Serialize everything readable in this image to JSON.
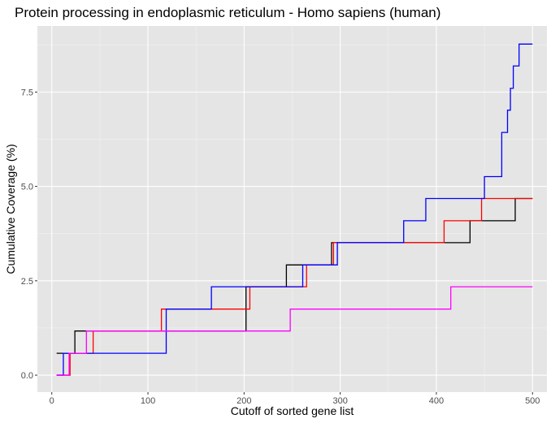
{
  "chart_data": {
    "type": "line",
    "title": "Protein processing in endoplasmic reticulum - Homo sapiens (human)",
    "xlabel": "Cutoff of sorted gene list",
    "ylabel": "Cumulative Coverage (%)",
    "xlim": [
      -15,
      515
    ],
    "ylim": [
      -0.45,
      9.25
    ],
    "x_ticks": [
      0,
      100,
      200,
      300,
      400,
      500
    ],
    "x_tick_labels": [
      "0",
      "100",
      "200",
      "300",
      "400",
      "500"
    ],
    "y_ticks": [
      0,
      2.5,
      5,
      7.5
    ],
    "y_tick_labels": [
      "0.0",
      "2.5",
      "5.0",
      "7.5"
    ],
    "grid": true,
    "background": "#e5e5e5",
    "series": [
      {
        "color": "#000000",
        "points": [
          [
            5,
            0.58
          ],
          [
            24,
            0.58
          ],
          [
            24,
            1.17
          ],
          [
            37,
            1.17
          ],
          [
            37,
            1.17
          ],
          [
            202,
            1.17
          ],
          [
            202,
            2.34
          ],
          [
            244,
            2.34
          ],
          [
            244,
            2.92
          ],
          [
            291,
            2.92
          ],
          [
            291,
            3.51
          ],
          [
            435,
            3.51
          ],
          [
            435,
            4.09
          ],
          [
            482,
            4.09
          ],
          [
            482,
            4.68
          ],
          [
            500,
            4.68
          ]
        ]
      },
      {
        "color": "#ff0000",
        "points": [
          [
            5,
            0
          ],
          [
            19,
            0
          ],
          [
            19,
            0.58
          ],
          [
            43,
            0.58
          ],
          [
            43,
            1.17
          ],
          [
            114,
            1.17
          ],
          [
            114,
            1.75
          ],
          [
            206,
            1.75
          ],
          [
            206,
            2.34
          ],
          [
            265,
            2.34
          ],
          [
            265,
            2.92
          ],
          [
            293,
            2.92
          ],
          [
            293,
            3.51
          ],
          [
            408,
            3.51
          ],
          [
            408,
            4.09
          ],
          [
            447,
            4.09
          ],
          [
            447,
            4.68
          ],
          [
            500,
            4.68
          ]
        ]
      },
      {
        "color": "#0000ff",
        "points": [
          [
            5,
            0
          ],
          [
            12,
            0
          ],
          [
            12,
            0.58
          ],
          [
            119,
            0.58
          ],
          [
            119,
            1.75
          ],
          [
            166,
            1.75
          ],
          [
            166,
            2.34
          ],
          [
            261,
            2.34
          ],
          [
            261,
            2.92
          ],
          [
            297,
            2.92
          ],
          [
            297,
            3.51
          ],
          [
            366,
            3.51
          ],
          [
            366,
            4.09
          ],
          [
            389,
            4.09
          ],
          [
            389,
            4.68
          ],
          [
            450,
            4.68
          ],
          [
            450,
            5.26
          ],
          [
            468,
            5.26
          ],
          [
            468,
            6.43
          ],
          [
            474,
            6.43
          ],
          [
            474,
            7.02
          ],
          [
            477,
            7.02
          ],
          [
            477,
            7.6
          ],
          [
            480,
            7.6
          ],
          [
            480,
            8.19
          ],
          [
            486,
            8.19
          ],
          [
            486,
            8.77
          ],
          [
            500,
            8.77
          ]
        ]
      },
      {
        "color": "#ff00ff",
        "points": [
          [
            5,
            0
          ],
          [
            18,
            0
          ],
          [
            18,
            0.58
          ],
          [
            36,
            0.58
          ],
          [
            36,
            1.17
          ],
          [
            248,
            1.17
          ],
          [
            248,
            1.75
          ],
          [
            415,
            1.75
          ],
          [
            415,
            2.34
          ],
          [
            500,
            2.34
          ]
        ]
      }
    ]
  }
}
